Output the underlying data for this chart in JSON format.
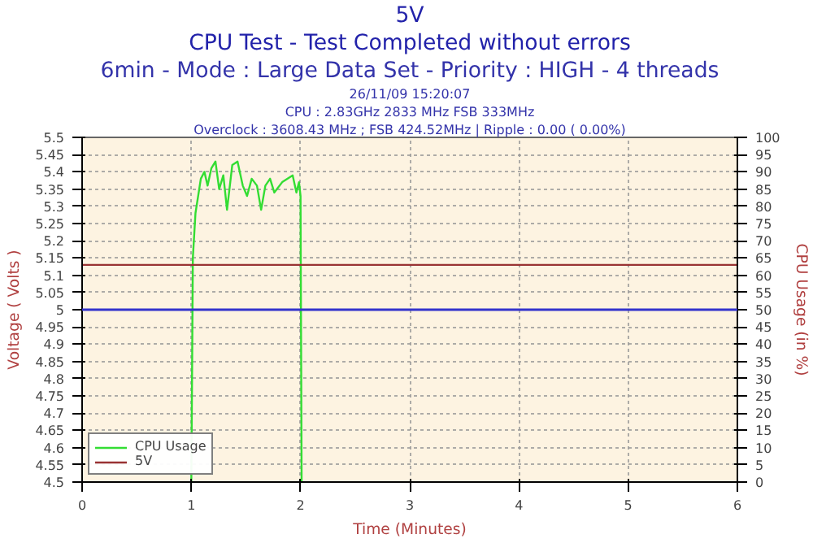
{
  "chart_data": {
    "type": "line",
    "title": "5V",
    "subtitle": "CPU Test - Test Completed without errors",
    "xlabel": "Time (Minutes)",
    "ylabel": "Voltage ( Volts )",
    "y2label": "CPU Usage (in %)",
    "annotations": [
      "6min - Mode : Large Data Set - Priority : HIGH - 4 threads",
      "26/11/09 15:20:07",
      "CPU : 2.83GHz 2833 MHz FSB 333MHz",
      "Overclock : 3608.43 MHz ; FSB 424.52MHz | Ripple : 0.00 ( 0.00%)"
    ],
    "series": [
      {
        "name": "CPU Usage",
        "color": "#33dd33",
        "axis": "y2",
        "x": [
          1.0,
          1.014,
          1.038,
          1.087,
          1.12,
          1.149,
          1.183,
          1.221,
          1.255,
          1.293,
          1.327,
          1.375,
          1.423,
          1.471,
          1.51,
          1.553,
          1.601,
          1.639,
          1.678,
          1.721,
          1.76,
          1.832,
          1.928,
          1.962,
          1.986,
          2.0,
          2.01
        ],
        "values": [
          0,
          65,
          78,
          88,
          90,
          86,
          91,
          93,
          85,
          89,
          79,
          92,
          93,
          86,
          83,
          88,
          86,
          79,
          86,
          88,
          84,
          87,
          89,
          84,
          87,
          83,
          0
        ]
      },
      {
        "name": "5V",
        "color": "#993333",
        "x": [
          0,
          6
        ],
        "values": [
          5.13,
          5.13
        ]
      }
    ],
    "ref_lines": [
      {
        "axis": "y",
        "value": 5,
        "label": null,
        "color": "#3333cc"
      }
    ],
    "xlim": [
      0,
      6
    ],
    "xticks": [
      0,
      1,
      2,
      3,
      4,
      5,
      6
    ],
    "ylim": [
      4.5,
      5.5
    ],
    "yticks": [
      4.5,
      4.55,
      4.6,
      4.65,
      4.7,
      4.75,
      4.8,
      4.85,
      4.9,
      4.95,
      5,
      5.05,
      5.1,
      5.15,
      5.2,
      5.25,
      5.3,
      5.35,
      5.4,
      5.45,
      5.5
    ],
    "y2lim": [
      0,
      100
    ],
    "y2ticks": [
      0,
      5,
      10,
      15,
      20,
      25,
      30,
      35,
      40,
      45,
      50,
      55,
      60,
      65,
      70,
      75,
      80,
      85,
      90,
      95,
      100
    ],
    "grid": true,
    "legend": "bottom left",
    "line_style": "solid"
  }
}
